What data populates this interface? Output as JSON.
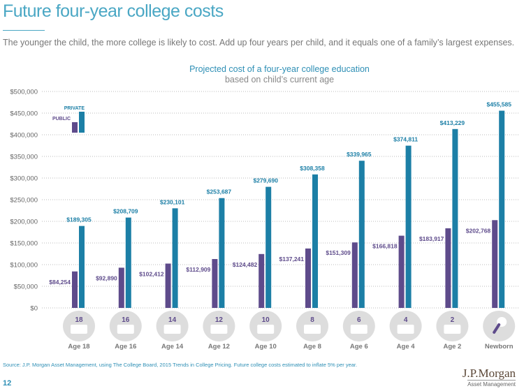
{
  "header": {
    "title": "Future four-year college costs",
    "subtitle": "The younger the child, the more college is likely to cost. Add up four years per child, and it equals one of a family’s largest expenses."
  },
  "chart_data": {
    "type": "bar",
    "title": "Projected cost of a four-year college education",
    "subtitle": "based on child’s current age",
    "categories": [
      "Age 18",
      "Age 16",
      "Age 14",
      "Age 12",
      "Age 10",
      "Age 8",
      "Age 6",
      "Age 4",
      "Age 2",
      "Newborn"
    ],
    "icon_labels": [
      "18",
      "16",
      "14",
      "12",
      "10",
      "8",
      "6",
      "4",
      "2",
      ""
    ],
    "series": [
      {
        "name": "PUBLIC",
        "color": "#5e4b8b",
        "values": [
          84254,
          92890,
          102412,
          112909,
          124482,
          137241,
          151309,
          166818,
          183917,
          202768
        ],
        "labels": [
          "$84,254",
          "$92,890",
          "$102,412",
          "$112,909",
          "$124,482",
          "$137,241",
          "$151,309",
          "$166,818",
          "$183,917",
          "$202,768"
        ]
      },
      {
        "name": "PRIVATE",
        "color": "#1c7fa6",
        "values": [
          189305,
          208709,
          230101,
          253687,
          279690,
          308358,
          339965,
          374811,
          413229,
          455585
        ],
        "labels": [
          "$189,305",
          "$208,709",
          "$230,101",
          "$253,687",
          "$279,690",
          "$308,358",
          "$339,965",
          "$374,811",
          "$413,229",
          "$455,585"
        ]
      }
    ],
    "yticks": [
      "$0",
      "$50,000",
      "$100,000",
      "$150,000",
      "$200,000",
      "$250,000",
      "$300,000",
      "$350,000",
      "$400,000",
      "$450,000",
      "$500,000"
    ],
    "ylim": [
      0,
      500000
    ],
    "grid": true,
    "legend": "top-left"
  },
  "footer": {
    "source": "Source: J.P. Morgan Asset Management, using The College Board, 2015 Trends in College Pricing. Future college costs estimated to inflate 5% per year.",
    "page": "12",
    "logo": "J.P.Morgan",
    "logo_sub": "Asset Management"
  }
}
